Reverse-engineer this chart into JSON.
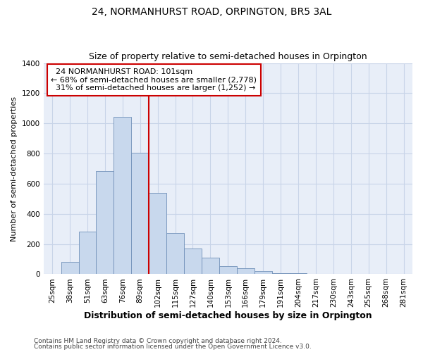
{
  "title": "24, NORMANHURST ROAD, ORPINGTON, BR5 3AL",
  "subtitle": "Size of property relative to semi-detached houses in Orpington",
  "xlabel": "Distribution of semi-detached houses by size in Orpington",
  "ylabel": "Number of semi-detached properties",
  "categories": [
    "25sqm",
    "38sqm",
    "51sqm",
    "63sqm",
    "76sqm",
    "89sqm",
    "102sqm",
    "115sqm",
    "127sqm",
    "140sqm",
    "153sqm",
    "166sqm",
    "179sqm",
    "191sqm",
    "204sqm",
    "217sqm",
    "230sqm",
    "243sqm",
    "255sqm",
    "268sqm",
    "281sqm"
  ],
  "values": [
    2,
    80,
    280,
    685,
    1045,
    805,
    540,
    275,
    170,
    110,
    55,
    38,
    20,
    5,
    5,
    2,
    1,
    1,
    1,
    1,
    2
  ],
  "bar_color": "#c8d8ed",
  "bar_edge_color": "#7090b8",
  "annotation_line1": "  24 NORMANHURST ROAD: 101sqm",
  "annotation_line2": "← 68% of semi-detached houses are smaller (2,778)",
  "annotation_line3": "  31% of semi-detached houses are larger (1,252) →",
  "annotation_box_color": "#ffffff",
  "annotation_box_edge": "#cc0000",
  "vline_color": "#cc0000",
  "vline_index": 6,
  "ylim": [
    0,
    1400
  ],
  "yticks": [
    0,
    200,
    400,
    600,
    800,
    1000,
    1200,
    1400
  ],
  "footnote1": "Contains HM Land Registry data © Crown copyright and database right 2024.",
  "footnote2": "Contains public sector information licensed under the Open Government Licence v3.0.",
  "bg_color": "#ffffff",
  "plot_bg_color": "#e8eef8",
  "grid_color": "#c8d4e8",
  "title_fontsize": 10,
  "subtitle_fontsize": 9,
  "xlabel_fontsize": 9,
  "ylabel_fontsize": 8,
  "tick_fontsize": 7.5,
  "annotation_fontsize": 8,
  "footnote_fontsize": 6.5
}
